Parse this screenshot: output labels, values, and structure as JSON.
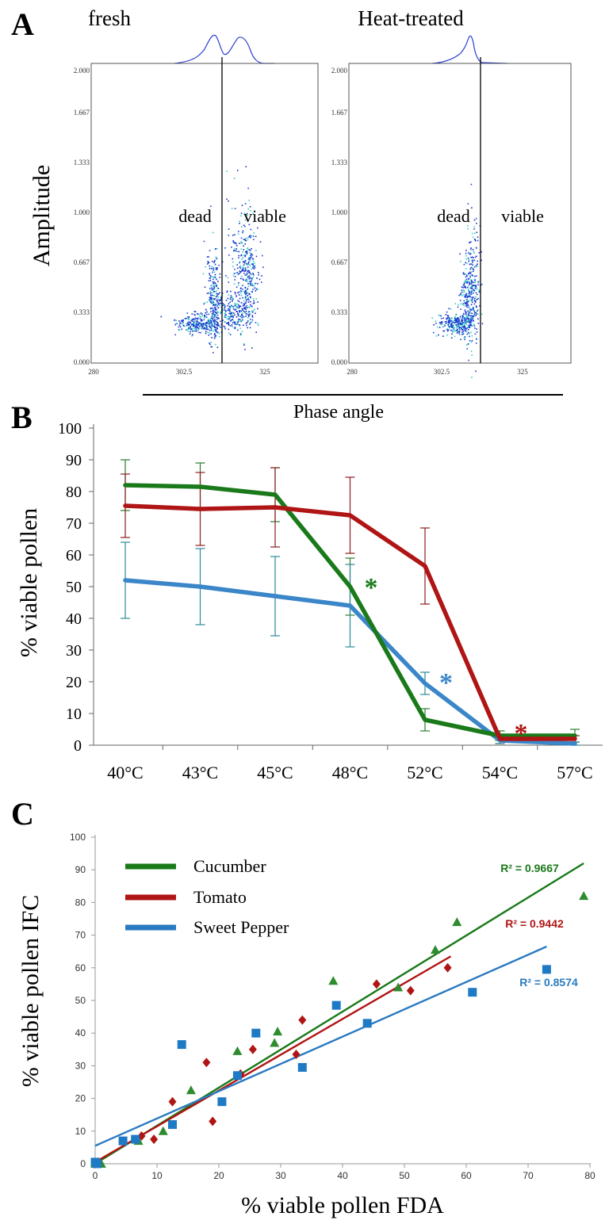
{
  "panel_letters": {
    "a": "A",
    "b": "B",
    "c": "C"
  },
  "panel_a": {
    "shared_xlabel": "Phase angle",
    "ylabel": "Amplitude",
    "y_ticks": [
      "2.000",
      "1.667",
      "1.333",
      "1.000",
      "0.667",
      "0.333",
      "0.000"
    ],
    "x_ticks": [
      "280",
      "302.5",
      "325"
    ],
    "plots": [
      {
        "title": "fresh",
        "gate_label_left": "dead",
        "gate_label_right": "viable"
      },
      {
        "title": "Heat-treated",
        "gate_label_left": "dead",
        "gate_label_right": "viable"
      }
    ]
  },
  "chart_data": [
    {
      "panel": "B",
      "type": "line",
      "categories": [
        "40°C",
        "43°C",
        "45°C",
        "48°C",
        "52°C",
        "54°C",
        "57°C"
      ],
      "ylabel": "% viable pollen",
      "ylim": [
        0,
        100
      ],
      "y_ticks": [
        0,
        10,
        20,
        30,
        40,
        50,
        60,
        70,
        80,
        90,
        100
      ],
      "series": [
        {
          "color": "#1a7a1a",
          "error_color": "#2a7a2a",
          "values": [
            82,
            81.5,
            79,
            50,
            8,
            3,
            3
          ],
          "errors": [
            8,
            7.5,
            8.5,
            9,
            3.5,
            1.5,
            2
          ]
        },
        {
          "color": "#b01515",
          "error_color": "#8b1e1e",
          "values": [
            75.5,
            74.5,
            75,
            72.5,
            56.5,
            2,
            2
          ],
          "errors": [
            10,
            11.5,
            12.5,
            12,
            12,
            1.5,
            1
          ]
        },
        {
          "color": "#3a86c8",
          "error_color": "#2a8a9a",
          "values": [
            52,
            50,
            47,
            44,
            19.5,
            1.5,
            0.5
          ],
          "errors": [
            12,
            12,
            12.5,
            13,
            3.5,
            1,
            0.5
          ]
        }
      ],
      "significance_marks": [
        {
          "text": "*",
          "color": "#1a7a1a",
          "x": 3.28,
          "y": 51
        },
        {
          "text": "*",
          "color": "#3a86c8",
          "x": 4.28,
          "y": 21
        },
        {
          "text": "*",
          "color": "#b01515",
          "x": 5.28,
          "y": 5
        }
      ]
    },
    {
      "panel": "C",
      "type": "scatter",
      "xlabel": "% viable pollen FDA",
      "ylabel": "% viable pollen IFC",
      "xlim": [
        0,
        80
      ],
      "ylim": [
        0,
        100
      ],
      "x_ticks": [
        0,
        10,
        20,
        30,
        40,
        50,
        60,
        70,
        80
      ],
      "y_ticks": [
        0,
        10,
        20,
        30,
        40,
        50,
        60,
        70,
        80,
        90,
        100
      ],
      "legend_position": "top-left",
      "series": [
        {
          "name": "Cucumber",
          "color": "#2e8b2e",
          "line_color": "#1a7a1a",
          "marker": "triangle",
          "points": [
            [
              0,
              0
            ],
            [
              0.5,
              0.5
            ],
            [
              1,
              0
            ],
            [
              7,
              7
            ],
            [
              11,
              10
            ],
            [
              15.5,
              22.5
            ],
            [
              23,
              34.5
            ],
            [
              29,
              37
            ],
            [
              29.5,
              40.5
            ],
            [
              38.5,
              56
            ],
            [
              49,
              54
            ],
            [
              55,
              65.5
            ],
            [
              58.5,
              74
            ],
            [
              79,
              82
            ]
          ],
          "trendline": {
            "x0": 0,
            "y0": 0,
            "x1": 79,
            "y1": 92
          },
          "r2": "R² = 0.9667"
        },
        {
          "name": "Tomato",
          "color": "#b01515",
          "line_color": "#b01515",
          "marker": "diamond",
          "points": [
            [
              0,
              0
            ],
            [
              0.3,
              0.3
            ],
            [
              7.5,
              8.5
            ],
            [
              9.5,
              7.5
            ],
            [
              12.5,
              19
            ],
            [
              18,
              31
            ],
            [
              19,
              13
            ],
            [
              23.5,
              27.5
            ],
            [
              25.5,
              35
            ],
            [
              32.5,
              33.5
            ],
            [
              33.5,
              44
            ],
            [
              45.5,
              55
            ],
            [
              51,
              53
            ],
            [
              57,
              60
            ]
          ],
          "trendline": {
            "x0": 0,
            "y0": 0.5,
            "x1": 57.5,
            "y1": 63.5
          },
          "r2": "R² = 0.9442"
        },
        {
          "name": "Sweet Pepper",
          "color": "#1e7ac4",
          "line_color": "#2a7ac0",
          "marker": "square",
          "points": [
            [
              0,
              0.5
            ],
            [
              0.3,
              0
            ],
            [
              4.5,
              7
            ],
            [
              6.5,
              7.5
            ],
            [
              12.5,
              12
            ],
            [
              14,
              36.5
            ],
            [
              20.5,
              19
            ],
            [
              23,
              27
            ],
            [
              26,
              40
            ],
            [
              33.5,
              29.5
            ],
            [
              39,
              48.5
            ],
            [
              44,
              43
            ],
            [
              61,
              52.5
            ],
            [
              73,
              59.5
            ]
          ],
          "trendline": {
            "x0": 0,
            "y0": 5.5,
            "x1": 73,
            "y1": 66.5
          },
          "r2": "R² = 0.8574"
        }
      ]
    }
  ]
}
